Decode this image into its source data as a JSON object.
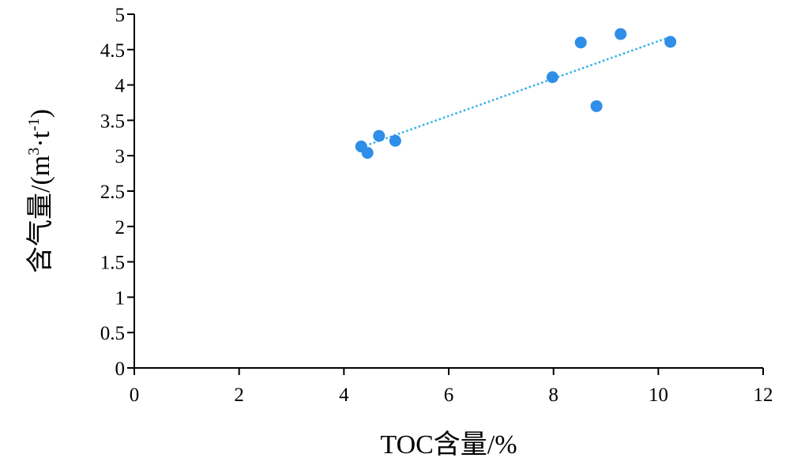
{
  "chart_data": {
    "type": "scatter",
    "title": "",
    "xlabel": "TOC含量/%",
    "ylabel_main": "含气量/(m",
    "ylabel_sup1": "3",
    "ylabel_mid": "·t",
    "ylabel_sup2": "-1",
    "ylabel_end": ")",
    "xlim": [
      0,
      12
    ],
    "ylim": [
      0,
      5
    ],
    "xticks": [
      0,
      2,
      4,
      6,
      8,
      10,
      12
    ],
    "yticks": [
      0,
      0.5,
      1,
      1.5,
      2,
      2.5,
      3,
      3.5,
      4,
      4.5,
      5
    ],
    "xtick_labels": [
      "0",
      "2",
      "4",
      "6",
      "8",
      "10",
      "12"
    ],
    "ytick_labels": [
      "0",
      "0.5",
      "1",
      "1.5",
      "2",
      "2.5",
      "3",
      "3.5",
      "4",
      "4.5",
      "5"
    ],
    "grid": false,
    "legend": false,
    "point_color": "#2f8ee8",
    "trendline_color": "#2fb0e8",
    "trendline_style": "dotted",
    "points": [
      {
        "x": 4.33,
        "y": 3.13
      },
      {
        "x": 4.45,
        "y": 3.04
      },
      {
        "x": 4.67,
        "y": 3.28
      },
      {
        "x": 4.98,
        "y": 3.21
      },
      {
        "x": 7.98,
        "y": 4.11
      },
      {
        "x": 8.52,
        "y": 4.6
      },
      {
        "x": 8.82,
        "y": 3.7
      },
      {
        "x": 9.28,
        "y": 4.72
      },
      {
        "x": 10.23,
        "y": 4.61
      }
    ],
    "trendline": {
      "x": [
        4.33,
        10.23
      ],
      "y": [
        3.12,
        4.68
      ]
    }
  }
}
